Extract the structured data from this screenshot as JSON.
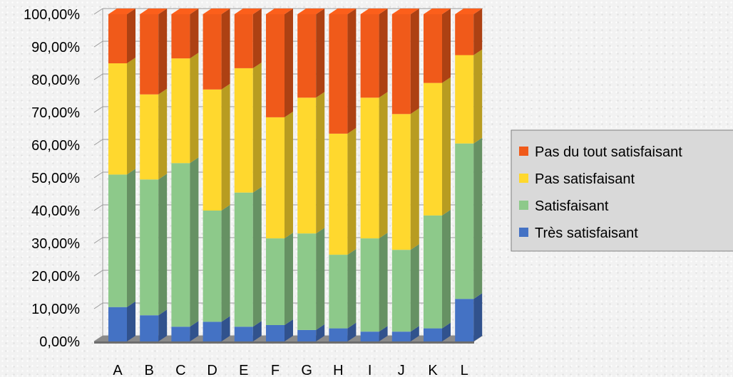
{
  "chart_data": {
    "type": "bar",
    "stacked": true,
    "three_d": true,
    "categories": [
      "A",
      "B",
      "C",
      "D",
      "E",
      "F",
      "G",
      "H",
      "I",
      "J",
      "K",
      "L"
    ],
    "series": [
      {
        "name": "Très satisfaisant",
        "color": "#4472c4",
        "values": [
          10.5,
          8.0,
          4.5,
          6.0,
          4.5,
          5.0,
          3.5,
          4.0,
          3.0,
          3.0,
          4.0,
          13.0
        ]
      },
      {
        "name": "Satisfaisant",
        "color": "#8dc98a",
        "values": [
          40.5,
          41.5,
          50.0,
          34.0,
          41.0,
          26.5,
          29.5,
          22.5,
          28.5,
          25.0,
          34.5,
          47.5
        ]
      },
      {
        "name": "Pas satisfaisant",
        "color": "#ffd82e",
        "values": [
          34.0,
          26.0,
          32.0,
          37.0,
          38.0,
          37.0,
          41.5,
          37.0,
          43.0,
          41.5,
          40.5,
          27.0
        ]
      },
      {
        "name": "Pas du tout satisfaisant",
        "color": "#f05a1a",
        "values": [
          15.0,
          24.5,
          13.5,
          23.0,
          16.5,
          31.5,
          25.5,
          36.5,
          25.5,
          30.5,
          21.0,
          12.5
        ]
      }
    ],
    "y_ticks": [
      "0,00%",
      "10,00%",
      "20,00%",
      "30,00%",
      "40,00%",
      "50,00%",
      "60,00%",
      "70,00%",
      "80,00%",
      "90,00%",
      "100,00%"
    ],
    "ylim": [
      0,
      100
    ],
    "grid": true,
    "legend_position": "right",
    "legend_order": [
      "Pas du tout satisfaisant",
      "Pas satisfaisant",
      "Satisfaisant",
      "Très satisfaisant"
    ]
  }
}
